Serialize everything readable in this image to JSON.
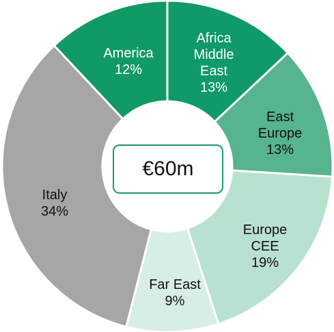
{
  "chart_data": {
    "type": "donut",
    "center_label": "€60m",
    "categories": [
      "Africa Middle East",
      "East Europe",
      "Europe CEE",
      "Far East",
      "Italy",
      "America"
    ],
    "values": [
      13,
      13,
      19,
      9,
      34,
      12
    ],
    "value_labels": [
      "13%",
      "13%",
      "19%",
      "9%",
      "34%",
      "12%"
    ],
    "colors": [
      "#0f9a68",
      "#56b48f",
      "#b9e1cf",
      "#d6eee4",
      "#a6a6a6",
      "#129a66"
    ]
  }
}
